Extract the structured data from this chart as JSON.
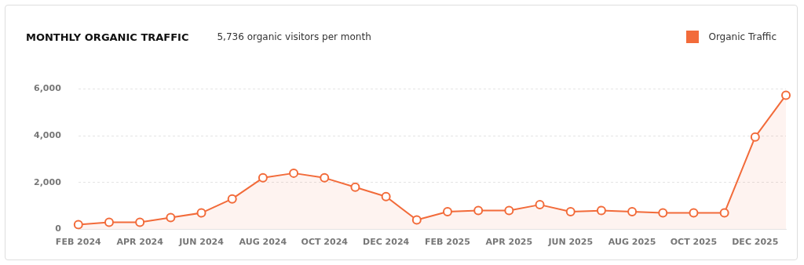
{
  "chart_data": {
    "type": "area",
    "title": "MONTHLY ORGANIC TRAFFIC",
    "subtitle": "5,736 organic visitors per month",
    "categories": [
      "FEB 2024",
      null,
      "APR 2024",
      null,
      "JUN 2024",
      null,
      "AUG 2024",
      null,
      "OCT 2024",
      null,
      "DEC 2024",
      null,
      "FEB 2025",
      null,
      "APR 2025",
      null,
      "JUN 2025",
      null,
      "AUG 2025",
      null,
      "OCT 2025",
      null,
      "DEC 2025",
      null
    ],
    "series": [
      {
        "name": "Organic Traffic",
        "color": "#f26b3a",
        "values": [
          200,
          300,
          300,
          500,
          700,
          1300,
          2200,
          2400,
          2200,
          1800,
          1400,
          400,
          750,
          800,
          800,
          1050,
          750,
          800,
          750,
          700,
          700,
          700,
          3950,
          5736
        ]
      }
    ],
    "ylim": [
      0,
      6000
    ],
    "yticks": [
      {
        "value": 0,
        "label": "0"
      },
      {
        "value": 2000,
        "label": "2,000"
      },
      {
        "value": 4000,
        "label": "4,000"
      },
      {
        "value": 6000,
        "label": "6,000"
      }
    ],
    "grid": "y",
    "legend": "top right",
    "marker": "circle"
  }
}
